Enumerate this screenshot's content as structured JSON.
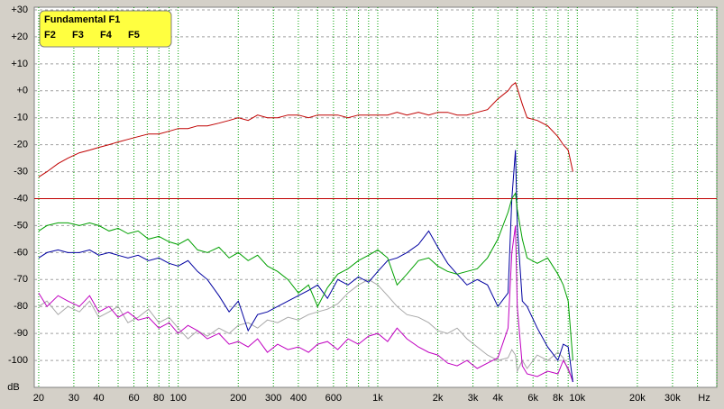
{
  "chart_data": {
    "type": "line",
    "x_unit": "Hz",
    "y_label": "dB",
    "xscale": "log",
    "grid": true,
    "legend": "upper left",
    "xlim": [
      19,
      50000
    ],
    "ylim": [
      -110,
      31
    ],
    "xticks": [
      20,
      30,
      40,
      60,
      80,
      100,
      200,
      300,
      400,
      600,
      {
        "value": 1000,
        "label": "1k"
      },
      {
        "value": 2000,
        "label": "2k"
      },
      {
        "value": 3000,
        "label": "3k"
      },
      {
        "value": 4000,
        "label": "4k"
      },
      {
        "value": 6000,
        "label": "6k"
      },
      {
        "value": 8000,
        "label": "8k"
      },
      {
        "value": 10000,
        "label": "10k"
      },
      {
        "value": 20000,
        "label": "20k"
      },
      {
        "value": 30000,
        "label": "30k"
      }
    ],
    "minor_xticks": [
      50,
      70,
      90,
      500,
      700,
      800,
      900,
      5000,
      7000,
      9000,
      40000,
      50000
    ],
    "yticks": [
      {
        "value": 30,
        "label": "+30"
      },
      {
        "value": 20,
        "label": "+20"
      },
      {
        "value": 10,
        "label": "+10"
      },
      {
        "value": 0,
        "label": "+0"
      },
      -10,
      -20,
      -30,
      -40,
      -50,
      -60,
      -70,
      -80,
      -90,
      -100
    ],
    "reference_line": {
      "value": -40,
      "color": "#c00000"
    },
    "x": [
      20,
      22,
      25,
      28,
      32,
      36,
      40,
      45,
      50,
      56,
      63,
      71,
      80,
      90,
      100,
      112,
      125,
      140,
      160,
      180,
      200,
      224,
      250,
      280,
      315,
      355,
      400,
      450,
      500,
      560,
      630,
      710,
      800,
      900,
      1000,
      1120,
      1250,
      1400,
      1600,
      1800,
      2000,
      2240,
      2500,
      2800,
      3150,
      3550,
      4000,
      4500,
      4700,
      4900,
      5000,
      5300,
      5600,
      6300,
      7100,
      8000,
      8500,
      9000,
      9500
    ],
    "series": [
      {
        "name": "Fundamental F1",
        "color": "#c00000",
        "values": [
          -32,
          -30,
          -27,
          -25,
          -23,
          -22,
          -21,
          -20,
          -19,
          -18,
          -17,
          -16,
          -16,
          -15,
          -14,
          -14,
          -13,
          -13,
          -12,
          -11,
          -10,
          -11,
          -9,
          -10,
          -10,
          -9,
          -9,
          -10,
          -9,
          -9,
          -9,
          -10,
          -9,
          -9,
          -9,
          -9,
          -8,
          -9,
          -8,
          -9,
          -8,
          -8,
          -9,
          -9,
          -8,
          -7,
          -3,
          0,
          2,
          3,
          1,
          -5,
          -10,
          -11,
          -13,
          -17,
          -20,
          -22,
          -30
        ]
      },
      {
        "name": "F2",
        "color": "#00a000",
        "values": [
          -52,
          -50,
          -49,
          -49,
          -50,
          -49,
          -50,
          -52,
          -51,
          -53,
          -52,
          -55,
          -54,
          -56,
          -57,
          -55,
          -59,
          -60,
          -58,
          -62,
          -60,
          -63,
          -61,
          -65,
          -67,
          -70,
          -75,
          -72,
          -80,
          -73,
          -68,
          -66,
          -63,
          -61,
          -59,
          -62,
          -72,
          -68,
          -63,
          -62,
          -65,
          -67,
          -68,
          -67,
          -66,
          -62,
          -55,
          -45,
          -40,
          -38,
          -44,
          -55,
          -62,
          -64,
          -62,
          -68,
          -72,
          -78,
          -100
        ]
      },
      {
        "name": "F3",
        "color": "#0000a0",
        "values": [
          -62,
          -60,
          -59,
          -60,
          -60,
          -59,
          -61,
          -60,
          -61,
          -62,
          -61,
          -63,
          -62,
          -64,
          -65,
          -63,
          -67,
          -70,
          -76,
          -82,
          -78,
          -89,
          -83,
          -82,
          -80,
          -78,
          -76,
          -74,
          -72,
          -77,
          -70,
          -72,
          -69,
          -71,
          -67,
          -63,
          -62,
          -60,
          -57,
          -52,
          -58,
          -64,
          -68,
          -72,
          -70,
          -72,
          -80,
          -75,
          -40,
          -22,
          -50,
          -78,
          -80,
          -88,
          -95,
          -100,
          -94,
          -95,
          -108
        ]
      },
      {
        "name": "F4",
        "color": "#c000c0",
        "values": [
          -75,
          -80,
          -76,
          -78,
          -80,
          -76,
          -82,
          -80,
          -84,
          -82,
          -85,
          -84,
          -88,
          -86,
          -90,
          -87,
          -89,
          -92,
          -90,
          -94,
          -93,
          -95,
          -92,
          -97,
          -94,
          -96,
          -95,
          -97,
          -94,
          -93,
          -96,
          -92,
          -94,
          -91,
          -90,
          -93,
          -88,
          -92,
          -95,
          -97,
          -98,
          -101,
          -102,
          -100,
          -103,
          -101,
          -99,
          -88,
          -60,
          -50,
          -80,
          -102,
          -105,
          -106,
          -104,
          -105,
          -100,
          -103,
          -108
        ]
      },
      {
        "name": "F5",
        "color": "#a8a8a8",
        "values": [
          -80,
          -78,
          -83,
          -80,
          -82,
          -78,
          -84,
          -82,
          -80,
          -86,
          -84,
          -81,
          -86,
          -84,
          -88,
          -92,
          -89,
          -91,
          -88,
          -90,
          -87,
          -86,
          -88,
          -85,
          -86,
          -84,
          -85,
          -83,
          -82,
          -81,
          -79,
          -75,
          -72,
          -70,
          -72,
          -76,
          -80,
          -83,
          -84,
          -86,
          -89,
          -90,
          -88,
          -92,
          -95,
          -98,
          -100,
          -99,
          -96,
          -98,
          -104,
          -100,
          -103,
          -98,
          -100,
          -97,
          -99,
          -104,
          -107
        ]
      }
    ]
  }
}
